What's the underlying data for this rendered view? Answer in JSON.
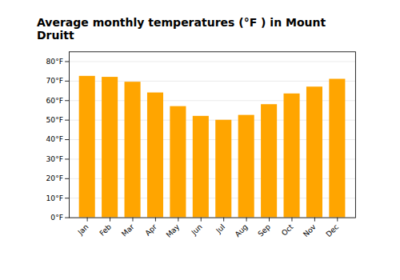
{
  "chart_data": {
    "type": "bar",
    "title": "Average monthly temperatures (°F ) in Mount Druitt",
    "categories": [
      "Jan",
      "Feb",
      "Mar",
      "Apr",
      "May",
      "Jun",
      "Jul",
      "Aug",
      "Sep",
      "Oct",
      "Nov",
      "Dec"
    ],
    "values": [
      72.5,
      72.0,
      69.5,
      64.0,
      57.0,
      52.0,
      50.0,
      52.5,
      58.0,
      63.5,
      67.0,
      71.0
    ],
    "color": "#FFA500",
    "ylim": [
      0,
      85
    ],
    "yticks": [
      {
        "value": 0,
        "label": "0°F"
      },
      {
        "value": 10,
        "label": "10°F"
      },
      {
        "value": 20,
        "label": "20°F"
      },
      {
        "value": 30,
        "label": "30°F"
      },
      {
        "value": 40,
        "label": "40°F"
      },
      {
        "value": 50,
        "label": "50°F"
      },
      {
        "value": 60,
        "label": "60°F"
      },
      {
        "value": 70,
        "label": "70°F"
      },
      {
        "value": 80,
        "label": "80°F"
      }
    ],
    "grid": true
  }
}
